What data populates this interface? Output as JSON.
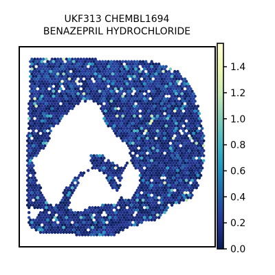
{
  "chart_data": {
    "type": "scatter",
    "subtype": "spatial-hexbin",
    "title_lines": [
      "UKF313 CHEMBL1694",
      "BENAZEPRIL HYDROCHLORIDE"
    ],
    "xlabel": "",
    "ylabel": "",
    "axis_ticks_visible": false,
    "grid": false,
    "colormap": "YlGnBu",
    "colorbar": {
      "min": 0.0,
      "max": 1.58,
      "ticks": [
        0.0,
        0.2,
        0.4,
        0.6,
        0.8,
        1.0,
        1.2,
        1.4
      ],
      "tick_labels": [
        "0.0",
        "0.2",
        "0.4",
        "0.6",
        "0.8",
        "1.0",
        "1.2",
        "1.4"
      ],
      "location": "right"
    },
    "value_distribution": "mostly 0.0-0.4 (dark navy), sparse spots 0.4-1.0 (teal), few near 1.2-1.4 (pale yellow)"
  },
  "colors": {
    "cmap_stops": [
      "#081d58",
      "#253494",
      "#225ea8",
      "#1d91c0",
      "#41b6c4",
      "#7fcdbb",
      "#c7e9b4",
      "#edf8b1",
      "#ffffd9"
    ],
    "axes_border": "#000000",
    "background": "#ffffff"
  }
}
